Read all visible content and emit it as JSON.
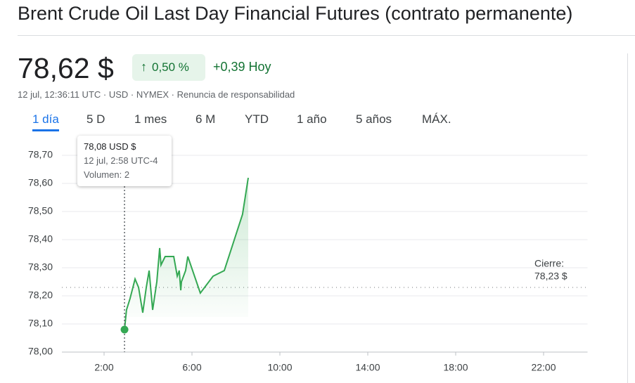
{
  "header": {
    "title": "Brent Crude Oil Last Day Financial Futures (contrato permanente)",
    "price": "78,62 $",
    "change_pct": "0,50 %",
    "change_abs": "+0,39 Hoy",
    "meta": "12 jul, 12:36:11 UTC · USD · NYMEX · Renuncia de responsabilidad"
  },
  "tabs": [
    "1 día",
    "5 D",
    "1 mes",
    "6 M",
    "YTD",
    "1 año",
    "5 años",
    "MÁX."
  ],
  "tooltip": {
    "price": "78,08 USD $",
    "time": "12 jul, 2:58 UTC-4",
    "volume": "Volumen: 2"
  },
  "chart_data": {
    "type": "line",
    "color": "#34a853",
    "x": [
      2.93,
      3.02,
      3.18,
      3.41,
      3.57,
      3.76,
      3.92,
      4.05,
      4.21,
      4.4,
      4.53,
      4.59,
      4.78,
      5.17,
      5.33,
      5.42,
      5.49,
      5.52,
      5.71,
      5.81,
      6.38,
      6.96,
      7.47,
      8.3,
      8.56
    ],
    "values": [
      78.08,
      78.15,
      78.19,
      78.26,
      78.23,
      78.14,
      78.23,
      78.29,
      78.15,
      78.25,
      78.37,
      78.31,
      78.34,
      78.34,
      78.27,
      78.29,
      78.22,
      78.25,
      78.29,
      78.34,
      78.21,
      78.27,
      78.29,
      78.49,
      78.62
    ],
    "xlim": [
      0,
      24
    ],
    "xticks": [
      {
        "value": 2,
        "label": "2:00"
      },
      {
        "value": 6,
        "label": "6:00"
      },
      {
        "value": 10,
        "label": "10:00"
      },
      {
        "value": 14,
        "label": "14:00"
      },
      {
        "value": 18,
        "label": "18:00"
      },
      {
        "value": 22,
        "label": "22:00"
      }
    ],
    "ylim": [
      78.0,
      78.7
    ],
    "yticks": [
      {
        "value": 78.0,
        "label": "78,00"
      },
      {
        "value": 78.1,
        "label": "78,10"
      },
      {
        "value": 78.2,
        "label": "78,20"
      },
      {
        "value": 78.3,
        "label": "78,30"
      },
      {
        "value": 78.4,
        "label": "78,40"
      },
      {
        "value": 78.5,
        "label": "78,50"
      },
      {
        "value": 78.6,
        "label": "78,60"
      },
      {
        "value": 78.7,
        "label": "78,70"
      }
    ],
    "grid": true,
    "reference_line": {
      "value": 78.23,
      "label": "Cierre:",
      "value_label": "78,23 $"
    }
  }
}
